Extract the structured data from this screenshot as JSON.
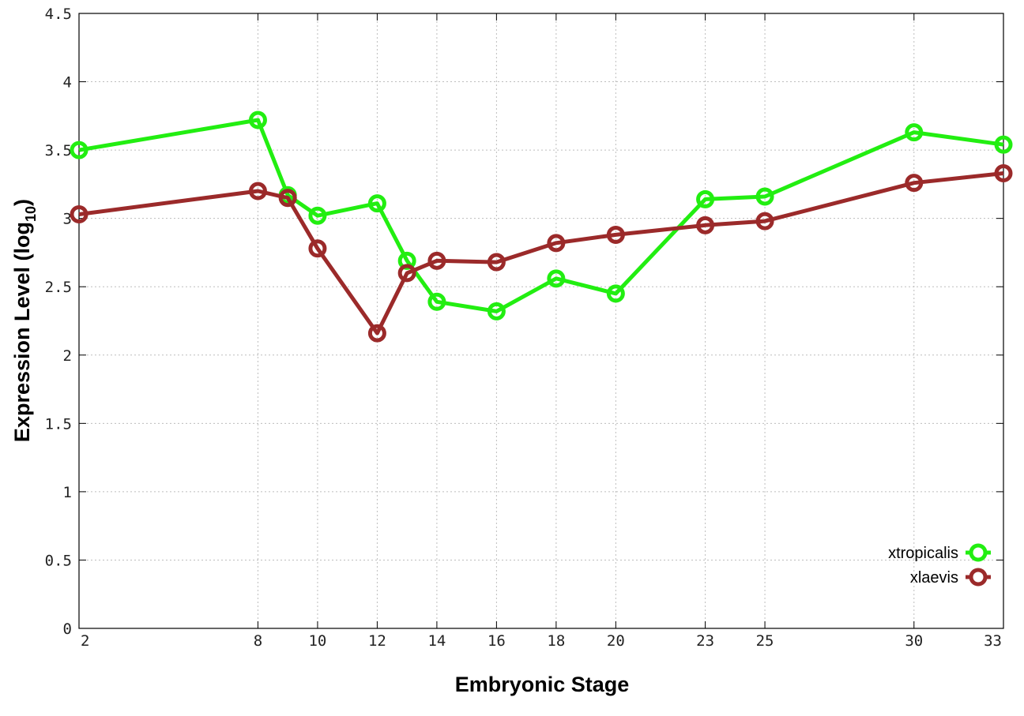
{
  "chart_data": {
    "type": "line",
    "xlabel": "Embryonic Stage",
    "ylabel_main": "Expression Level (log",
    "ylabel_sub": "10",
    "ylabel_close": ")",
    "ylim": [
      0,
      4.5
    ],
    "xlim": [
      2,
      33
    ],
    "x_ticks": [
      2,
      8,
      10,
      12,
      14,
      16,
      18,
      20,
      23,
      25,
      30,
      33
    ],
    "y_ticks": [
      "0",
      "0.5",
      "1",
      "1.5",
      "2",
      "2.5",
      "3",
      "3.5",
      "4",
      "4.5"
    ],
    "grid": true,
    "legend_position": "bottom-right",
    "series": [
      {
        "name": "xtropicalis",
        "color": "#22ee11",
        "x": [
          2,
          8,
          9,
          10,
          12,
          13,
          14,
          16,
          18,
          20,
          23,
          25,
          30,
          33
        ],
        "y": [
          3.5,
          3.72,
          3.17,
          3.02,
          3.11,
          2.69,
          2.39,
          2.32,
          2.56,
          2.45,
          3.14,
          3.16,
          3.63,
          3.54
        ]
      },
      {
        "name": "xlaevis",
        "color": "#9b2a2a",
        "x": [
          2,
          8,
          9,
          10,
          12,
          13,
          14,
          16,
          18,
          20,
          23,
          25,
          30,
          33
        ],
        "y": [
          3.03,
          3.2,
          3.15,
          2.78,
          2.16,
          2.6,
          2.69,
          2.68,
          2.82,
          2.88,
          2.95,
          2.98,
          3.26,
          3.33
        ]
      }
    ]
  }
}
